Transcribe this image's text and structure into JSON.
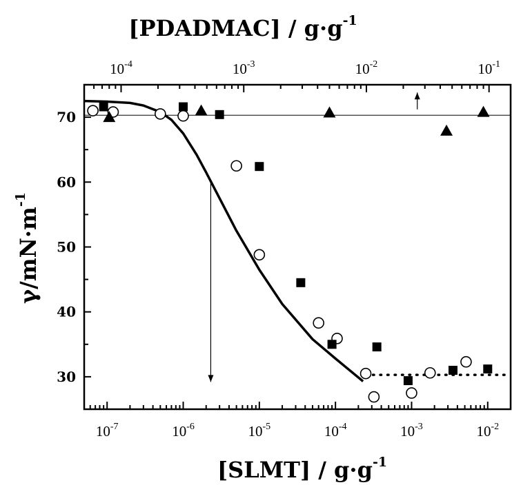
{
  "chart_data": {
    "type": "scatter",
    "xlabel": "[SLMT] / g·g",
    "xlabel_sup": "-1",
    "x2label": "[PDADMAC] / g·g",
    "x2label_sup": "-1",
    "ylabel": "γ/mN·m",
    "ylabel_sup": "-1",
    "xscale": "log",
    "x2scale": "log",
    "xlim": [
      5e-08,
      0.02
    ],
    "x2lim": [
      5e-05,
      0.15
    ],
    "ylim": [
      25,
      75
    ],
    "xticks": [
      {
        "base": "10",
        "exp": "-7",
        "value": 1e-07
      },
      {
        "base": "10",
        "exp": "-6",
        "value": 1e-06
      },
      {
        "base": "10",
        "exp": "-5",
        "value": 1e-05
      },
      {
        "base": "10",
        "exp": "-4",
        "value": 0.0001
      },
      {
        "base": "10",
        "exp": "-3",
        "value": 0.001
      },
      {
        "base": "10",
        "exp": "-2",
        "value": 0.01
      }
    ],
    "x2ticks": [
      {
        "base": "10",
        "exp": "-4",
        "value": 0.0001
      },
      {
        "base": "10",
        "exp": "-3",
        "value": 0.001
      },
      {
        "base": "10",
        "exp": "-2",
        "value": 0.01
      },
      {
        "base": "10",
        "exp": "-1",
        "value": 0.1
      }
    ],
    "yticks": [
      "30",
      "40",
      "50",
      "60",
      "70"
    ],
    "series": [
      {
        "marker": "open-circle",
        "axis": "bottom",
        "x": [
          6.5e-08,
          1.2e-07,
          5e-07,
          1e-06,
          5e-06,
          1e-05,
          6e-05,
          0.000105,
          0.00025,
          0.00032,
          0.001,
          0.00175,
          0.0052
        ],
        "y": [
          71.0,
          70.8,
          70.5,
          70.2,
          62.5,
          48.8,
          38.3,
          35.9,
          30.5,
          26.9,
          27.5,
          30.6,
          32.3
        ]
      },
      {
        "marker": "filled-square",
        "axis": "bottom",
        "x": [
          9e-08,
          1e-06,
          3e-06,
          1e-05,
          3.5e-05,
          9e-05,
          0.00035,
          0.0009,
          0.0035,
          0.01
        ],
        "y": [
          71.6,
          71.6,
          70.4,
          62.4,
          44.5,
          35.0,
          34.6,
          29.4,
          31.0,
          31.2
        ]
      },
      {
        "marker": "filled-triangle",
        "axis": "top",
        "x": [
          8e-05,
          0.00045,
          0.005,
          0.045,
          0.09
        ],
        "y": [
          70.0,
          71.0,
          70.7,
          67.9,
          70.8
        ]
      }
    ],
    "fit_curve": {
      "axis": "bottom",
      "x": [
        5e-08,
        1e-07,
        2e-07,
        3e-07,
        5e-07,
        7e-07,
        1e-06,
        1.5e-06,
        2e-06,
        3e-06,
        5e-06,
        1e-05,
        2e-05,
        5e-05,
        0.0001,
        0.00023
      ],
      "y": [
        72.5,
        72.4,
        72.2,
        71.8,
        70.8,
        69.6,
        67.5,
        64.2,
        61.5,
        57.5,
        52.5,
        46.5,
        41.2,
        35.8,
        32.8,
        29.3
      ]
    },
    "dotted_line": {
      "x": [
        0.00025,
        0.02
      ],
      "y": 30.3
    },
    "reference_line": {
      "y": 70.3
    },
    "arrows": [
      {
        "axis": "bottom",
        "x": 2.3e-06,
        "from_y": 60.2,
        "to_y": 29.2
      },
      {
        "axis": "top",
        "x": 0.026,
        "from_y": 71.2,
        "to_y": 73.8
      }
    ]
  }
}
